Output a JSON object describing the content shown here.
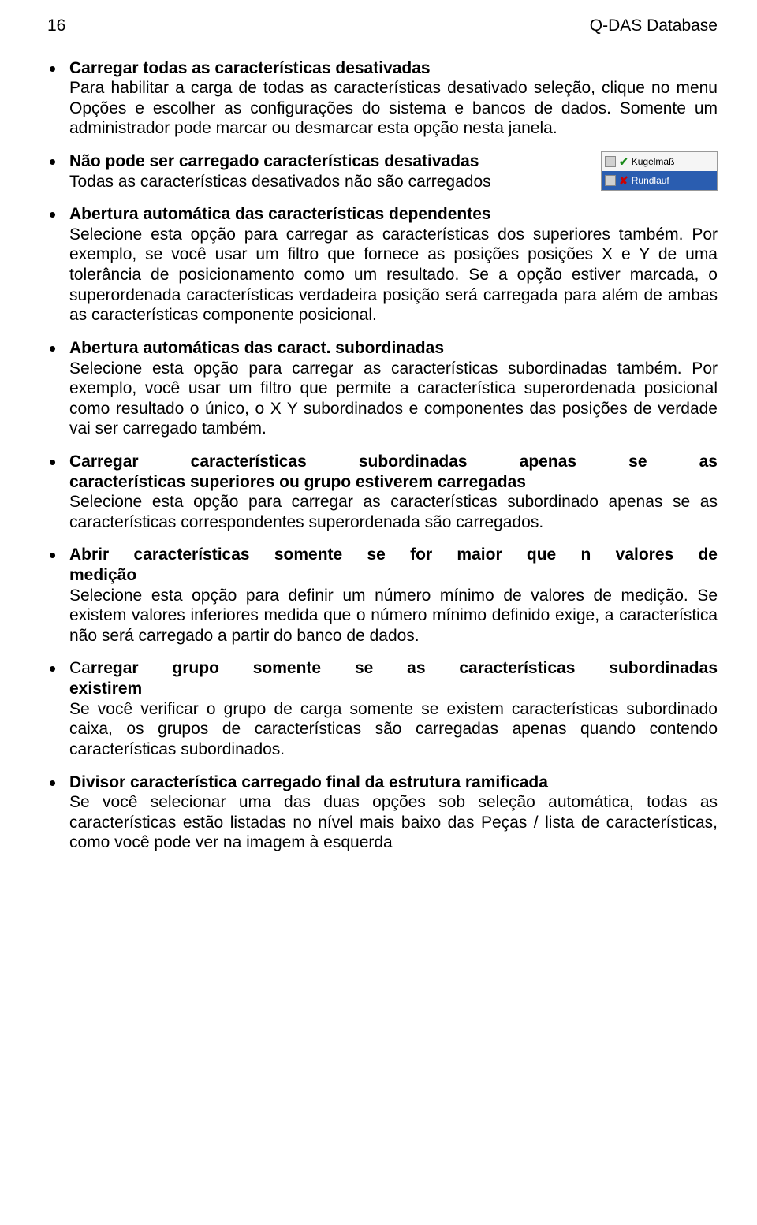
{
  "header": {
    "page_number": "16",
    "title": "Q-DAS Database"
  },
  "items": [
    {
      "title": "Carregar todas as características desativadas",
      "body": "Para habilitar a carga de todas as características desativado seleção, clique no menu Opções e escolher as configurações do sistema e bancos de dados. Somente um administrador pode marcar ou desmarcar esta opção nesta janela."
    },
    {
      "title": "Não pode ser carregado características desativadas",
      "body": "Todas as características desativados não são carregados",
      "has_img": true,
      "img_row1": "Kugelmaß",
      "img_row2": "Rundlauf"
    },
    {
      "title": "Abertura automática das características  dependentes",
      "body": "Selecione esta opção para carregar as características dos superiores também. Por exemplo, se você usar um filtro que fornece as posições posições X e Y de uma tolerância de posicionamento como um resultado. Se a opção estiver marcada, o superordenada características verdadeira posição será carregada para além de ambas as características componente posicional."
    },
    {
      "title": "Abertura automáticas das caract. subordinadas",
      "body": "Selecione esta opção para carregar as características subordinadas também. Por exemplo, você usar um filtro que permite a característica superordenada posicional como resultado o único, o X Y subordinados e componentes das posições de verdade vai ser carregado também."
    },
    {
      "title": "Carregar características subordinadas apenas se as características superiores ou grupo estiverem carregadas",
      "body": "Selecione esta opção para carregar as características subordinado apenas se as características correspondentes superordenada são carregados.",
      "justify_title": true
    },
    {
      "title": "Abrir características somente se for maior que n valores de medição",
      "body": "Selecione esta opção para definir um número mínimo de valores de medição. Se existem valores inferiores medida que o número mínimo definido exige, a característica não será carregado a partir do banco de dados.",
      "justify_title": true
    },
    {
      "title_prefix": "Ca",
      "title": "rregar grupo somente se as características subordinadas existirem",
      "body": "Se você verificar o grupo de carga somente se existem características subordinado caixa, os grupos de características são carregadas apenas quando contendo características subordinados.",
      "justify_title": true
    },
    {
      "title": "Divisor característica carregado final da estrutura ramificada",
      "body": "Se você selecionar uma das duas opções sob seleção automática, todas as características estão listadas no nível mais baixo das Peças / lista de características, como você pode ver na imagem à esquerda"
    }
  ]
}
